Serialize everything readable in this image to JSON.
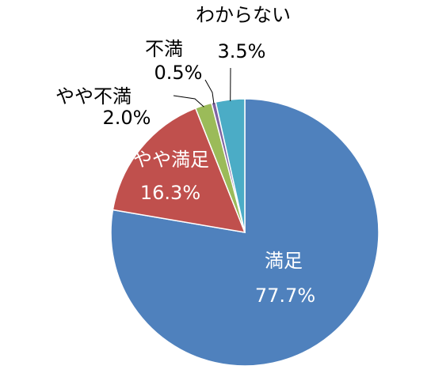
{
  "chart_data": {
    "type": "pie",
    "start": "top",
    "direction": "clockwise",
    "slices": [
      {
        "label": "満足",
        "value": 77.7,
        "value_text": "77.7%",
        "color": "#4F81BD",
        "label_color": "#ffffff",
        "label_placement": "inside"
      },
      {
        "label": "やや満足",
        "value": 16.3,
        "value_text": "16.3%",
        "color": "#C0504D",
        "label_color": "#ffffff",
        "label_placement": "inside"
      },
      {
        "label": "やや不満",
        "value": 2.0,
        "value_text": "2.0%",
        "color": "#9BBB59",
        "label_color": "#000000",
        "label_placement": "outside"
      },
      {
        "label": "不満",
        "value": 0.5,
        "value_text": "0.5%",
        "color": "#8064A2",
        "label_color": "#000000",
        "label_placement": "outside"
      },
      {
        "label": "わからない",
        "value": 3.5,
        "value_text": "3.5%",
        "color": "#4BACC6",
        "label_color": "#000000",
        "label_placement": "outside"
      }
    ],
    "border_color": "#ffffff",
    "leader_line_color": "#000000"
  }
}
